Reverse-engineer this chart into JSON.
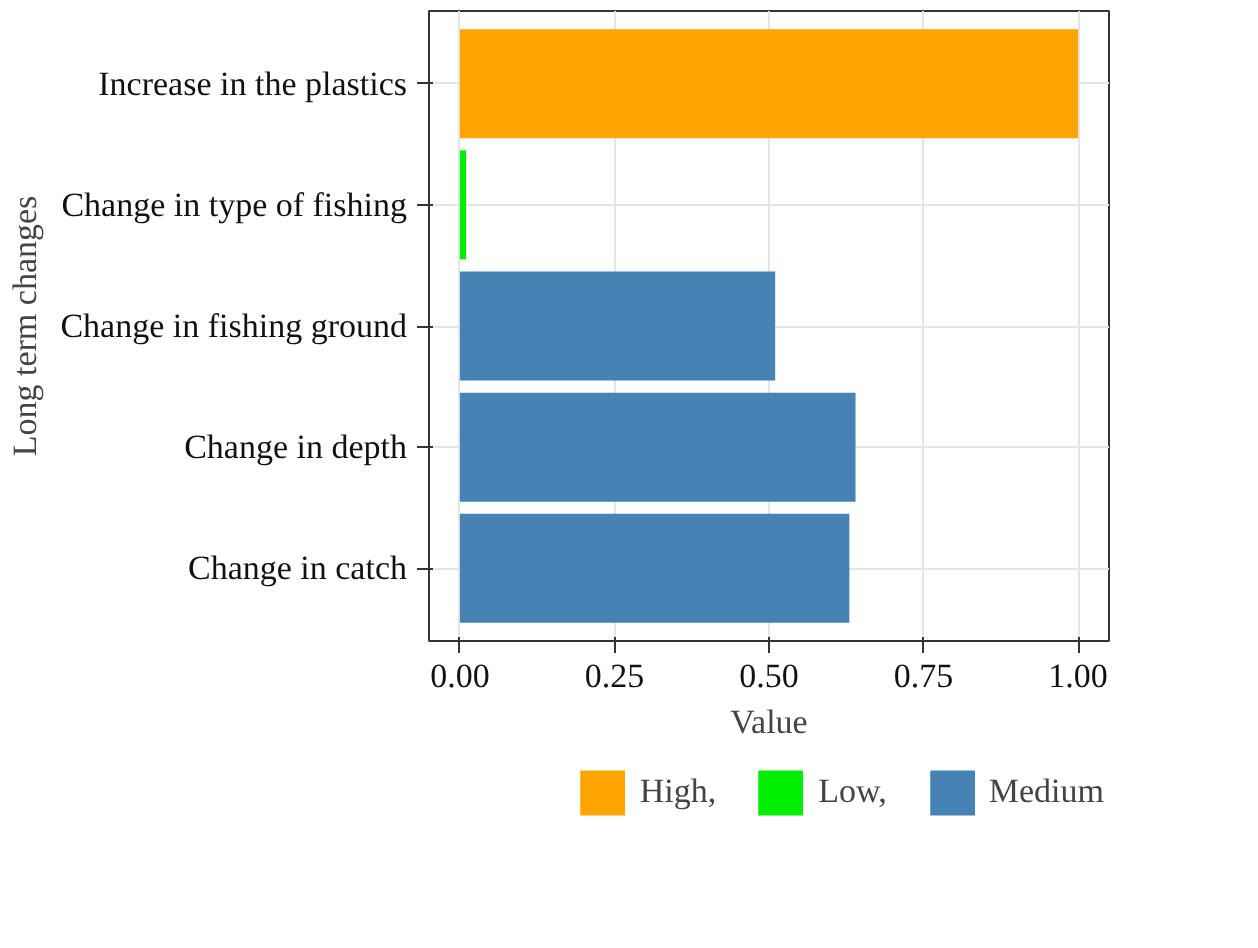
{
  "chart_data": {
    "type": "bar",
    "orientation": "horizontal",
    "xlabel": "Value",
    "ylabel": "Long term changes",
    "categories": [
      "Increase in the plastics",
      "Change in type of fishing",
      "Change in fishing ground",
      "Change in depth",
      "Change in catch"
    ],
    "series": [
      {
        "name": "High,",
        "color": "#ffa500",
        "values": [
          1.0,
          null,
          null,
          null,
          null
        ]
      },
      {
        "name": "Low,",
        "color": "#00ee00",
        "values": [
          null,
          0.01,
          null,
          null,
          null
        ]
      },
      {
        "name": "Medium",
        "color": "#4682b4",
        "values": [
          null,
          null,
          0.51,
          0.64,
          0.63
        ]
      }
    ],
    "xlim": [
      -0.05,
      1.05
    ],
    "xticks": [
      {
        "value": 0,
        "label": "0.00"
      },
      {
        "value": 0.25,
        "label": "0.25"
      },
      {
        "value": 0.5,
        "label": "0.50"
      },
      {
        "value": 0.75,
        "label": "0.75"
      },
      {
        "value": 1,
        "label": "1.00"
      }
    ],
    "grid": true,
    "legend": "bottom"
  }
}
